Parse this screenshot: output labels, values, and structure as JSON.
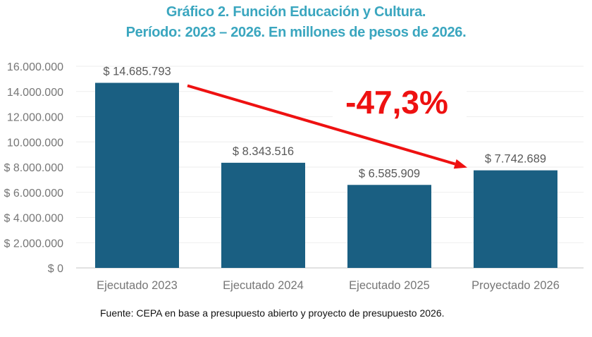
{
  "chart_data": {
    "type": "bar",
    "title": "Gráfico 2. Función Educación y Cultura.",
    "subtitle": "Período: 2023 – 2026. En millones de pesos de 2026.",
    "categories": [
      "Ejecutado 2023",
      "Ejecutado 2024",
      "Ejecutado 2025",
      "Proyectado 2026"
    ],
    "values": [
      14685793,
      8343516,
      6585909,
      7742689
    ],
    "data_labels": [
      "$ 14.685.793",
      "$ 8.343.516",
      "$ 6.585.909",
      "$ 7.742.689"
    ],
    "ylim": [
      0,
      16000000
    ],
    "yticks": [
      0,
      2000000,
      4000000,
      6000000,
      8000000,
      10000000,
      12000000,
      14000000,
      16000000
    ],
    "ytick_labels": [
      "$ 0",
      "$ 2.000.000",
      "$ 4.000.000",
      "$ 6.000.000",
      "$ 8.000.000",
      "10.000.000",
      "12.000.000",
      "14.000.000",
      "16.000.000"
    ],
    "grid": true,
    "xlabel": "",
    "ylabel": "",
    "annotation": {
      "text": "-47,3%",
      "from_category": "Ejecutado 2023",
      "to_category": "Proyectado 2026"
    },
    "source": "Fuente: CEPA en base a presupuesto abierto y proyecto de presupuesto 2026.",
    "colors": {
      "bar": "#1a5f82",
      "title": "#3aa6bf",
      "arrow": "#ee1111",
      "grid": "#eeeeee"
    }
  }
}
